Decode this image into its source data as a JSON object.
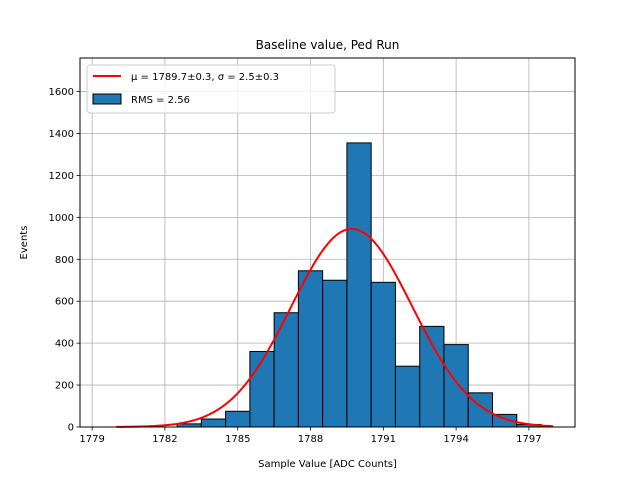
{
  "chart_data": {
    "type": "bar",
    "title": "Baseline value, Ped Run",
    "xlabel": "Sample Value [ADC Counts]",
    "ylabel": "Events",
    "xlim": [
      1778.5,
      1798.9
    ],
    "ylim": [
      0,
      1760
    ],
    "xticks": [
      1779,
      1782,
      1785,
      1788,
      1791,
      1794,
      1797
    ],
    "yticks": [
      0,
      200,
      400,
      600,
      800,
      1000,
      1200,
      1400,
      1600
    ],
    "grid": true,
    "legend_position": "top-left",
    "bar_color": "#1f77b4",
    "fit_color": "#ff0000",
    "histogram": {
      "name": "RMS = 2.56",
      "bins": [
        {
          "left": 1782.5,
          "right": 1783.5,
          "value": 15
        },
        {
          "left": 1783.5,
          "right": 1784.5,
          "value": 38
        },
        {
          "left": 1784.5,
          "right": 1785.5,
          "value": 75
        },
        {
          "left": 1785.5,
          "right": 1786.5,
          "value": 360
        },
        {
          "left": 1786.5,
          "right": 1787.5,
          "value": 545
        },
        {
          "left": 1787.5,
          "right": 1788.5,
          "value": 745
        },
        {
          "left": 1788.5,
          "right": 1789.5,
          "value": 700
        },
        {
          "left": 1789.5,
          "right": 1790.5,
          "value": 1355
        },
        {
          "left": 1790.5,
          "right": 1791.5,
          "value": 690
        },
        {
          "left": 1791.5,
          "right": 1792.5,
          "value": 290
        },
        {
          "left": 1792.5,
          "right": 1793.5,
          "value": 480
        },
        {
          "left": 1793.5,
          "right": 1794.5,
          "value": 393
        },
        {
          "left": 1794.5,
          "right": 1795.5,
          "value": 163
        },
        {
          "left": 1795.5,
          "right": 1796.5,
          "value": 60
        },
        {
          "left": 1796.5,
          "right": 1797.5,
          "value": 12
        }
      ]
    },
    "fit": {
      "name": "μ = 1789.7±0.3, σ = 2.5±0.3",
      "mu": 1789.7,
      "sigma": 2.5,
      "amplitude": 945,
      "x_range": [
        1780,
        1798
      ]
    }
  }
}
